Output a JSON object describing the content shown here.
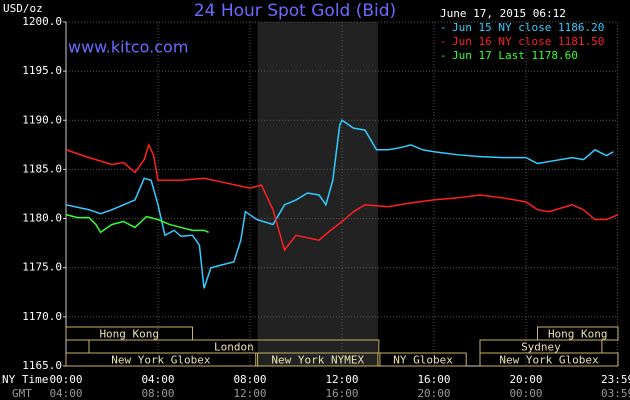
{
  "chart_data": {
    "type": "line",
    "title": "24 Hour Spot Gold (Bid)",
    "timestamp": "June 17, 2015 06:12",
    "site": "www.kitco.com",
    "ylabel": "USD/oz",
    "x_row_labels": [
      "NY Time",
      "GMT"
    ],
    "xlim": [
      0,
      24
    ],
    "xticks": [
      {
        "value": 0,
        "label": "00:00"
      },
      {
        "value": 4,
        "label": "04:00"
      },
      {
        "value": 8,
        "label": "08:00"
      },
      {
        "value": 12,
        "label": "12:00"
      },
      {
        "value": 16,
        "label": "16:00"
      },
      {
        "value": 20,
        "label": "20:00"
      },
      {
        "value": 23.98,
        "label": "23:59"
      }
    ],
    "gmt_labels": [
      "04:00",
      "08:00",
      "12:00",
      "16:00",
      "20:00",
      "00:00",
      "03:59"
    ],
    "ylim": [
      1165,
      1200
    ],
    "yticks": [
      {
        "value": 1165,
        "label": "1165.0"
      },
      {
        "value": 1170,
        "label": "1170.0"
      },
      {
        "value": 1175,
        "label": "1175.0"
      },
      {
        "value": 1180,
        "label": "1180.0"
      },
      {
        "value": 1185,
        "label": "1185.0"
      },
      {
        "value": 1190,
        "label": "1190.0"
      },
      {
        "value": 1195,
        "label": "1195.0"
      },
      {
        "value": 1200,
        "label": "1200.0"
      }
    ],
    "grid": true,
    "shade": [
      8.33,
      13.56
    ],
    "session_rows": [
      [
        {
          "label": "Hong Kong",
          "start": 0,
          "end": 5.5
        },
        {
          "label": "Hong Kong",
          "start": 20.5,
          "end": 24
        }
      ],
      [
        {
          "label": "London",
          "start": 1,
          "end": 13.6
        },
        {
          "label": "Sydney",
          "start": 18,
          "end": 23.3
        }
      ],
      [
        {
          "label": "New York Globex",
          "start": 0,
          "end": 8.25
        },
        {
          "label": "New York NYMEX",
          "start": 8.33,
          "end": 13.56
        },
        {
          "label": "NY Globex",
          "start": 13.65,
          "end": 17.4
        },
        {
          "label": "New York Globex",
          "start": 18,
          "end": 24
        }
      ]
    ],
    "series": [
      {
        "name": "Jun 15 NY close 1186.20",
        "color": "#33ccff",
        "x": [
          0,
          1,
          1.5,
          2,
          3,
          3.4,
          3.7,
          4,
          4.3,
          4.7,
          5,
          5.5,
          5.8,
          6,
          6.3,
          6.8,
          7.3,
          7.6,
          7.8,
          8.3,
          9,
          9.5,
          10,
          10.5,
          11,
          11.3,
          11.6,
          11.9,
          12,
          12.5,
          13,
          13.5,
          14,
          14.5,
          15,
          15.5,
          16,
          17,
          18,
          19,
          20,
          20.5,
          21,
          22,
          22.5,
          23,
          23.5,
          23.8
        ],
        "values": [
          1181.4,
          1180.9,
          1180.5,
          1180.9,
          1181.9,
          1184.1,
          1183.9,
          1181.4,
          1178.3,
          1178.8,
          1178.2,
          1178.3,
          1177.3,
          1172.9,
          1175,
          1175.3,
          1175.6,
          1177.8,
          1180.7,
          1179.9,
          1179.4,
          1181.4,
          1181.9,
          1182.6,
          1182.4,
          1181.4,
          1183.9,
          1189.5,
          1190,
          1189.2,
          1189,
          1187,
          1187,
          1187.2,
          1187.5,
          1187,
          1186.8,
          1186.5,
          1186.3,
          1186.2,
          1186.2,
          1185.6,
          1185.8,
          1186.2,
          1186,
          1187,
          1186.4,
          1186.8
        ]
      },
      {
        "name": "Jun 16 NY close 1181.50",
        "color": "#ff2020",
        "x": [
          0,
          1,
          2,
          2.5,
          3,
          3.4,
          3.6,
          3.8,
          4,
          5,
          6,
          7,
          8,
          8.5,
          9,
          9.5,
          10,
          11,
          11.5,
          12,
          12.5,
          13,
          14,
          15,
          16,
          17,
          18,
          19,
          20,
          20.5,
          21,
          22,
          22.5,
          23,
          23.5,
          24
        ],
        "values": [
          1187,
          1186.2,
          1185.5,
          1185.7,
          1184.7,
          1186,
          1187.5,
          1186.5,
          1183.9,
          1183.9,
          1184.1,
          1183.6,
          1183.1,
          1183.4,
          1180.9,
          1176.8,
          1178.3,
          1177.8,
          1178.8,
          1179.7,
          1180.7,
          1181.4,
          1181.2,
          1181.6,
          1181.9,
          1182.1,
          1182.4,
          1182.1,
          1181.7,
          1180.9,
          1180.7,
          1181.4,
          1180.9,
          1179.9,
          1179.9,
          1180.4
        ]
      },
      {
        "name": "Jun 17 Last 1178.60",
        "color": "#33ff33",
        "x": [
          0,
          0.5,
          1,
          1.3,
          1.5,
          2,
          2.5,
          3,
          3.5,
          4,
          4.5,
          5,
          5.5,
          6,
          6.2
        ],
        "values": [
          1180.4,
          1180.1,
          1180.1,
          1179.4,
          1178.6,
          1179.4,
          1179.7,
          1179.1,
          1180.2,
          1179.9,
          1179.4,
          1179.1,
          1178.8,
          1178.8,
          1178.6
        ]
      }
    ]
  }
}
